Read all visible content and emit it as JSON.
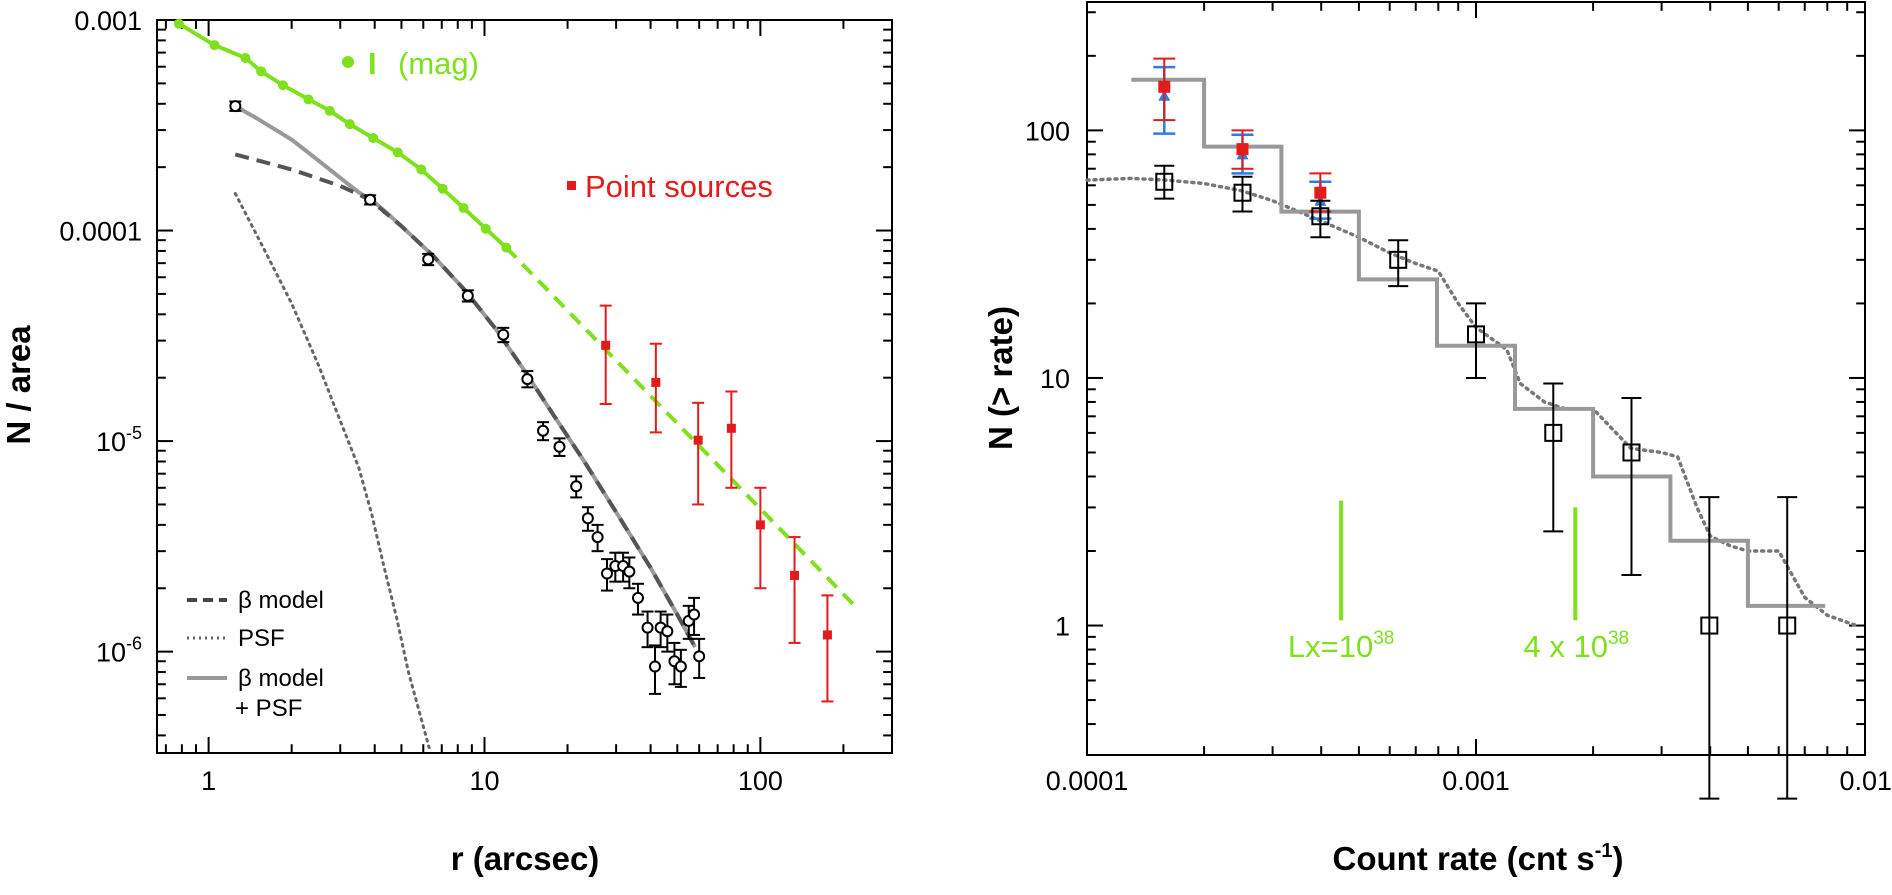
{
  "chart_data": [
    {
      "type": "scatter",
      "xscale": "log",
      "yscale": "log",
      "xlim": [
        0.65,
        300
      ],
      "ylim": [
        3.3e-07,
        0.001
      ],
      "xlabel": "r (arcsec)",
      "ylabel": "N / area",
      "xticks": [
        {
          "v": 1,
          "label": "1"
        },
        {
          "v": 10,
          "label": "10"
        },
        {
          "v": 100,
          "label": "100"
        }
      ],
      "yticks": [
        {
          "v": 0.001,
          "label": "0.001"
        },
        {
          "v": 0.0001,
          "label": "0.0001"
        },
        {
          "v": 1e-05,
          "base": "10",
          "exp": "-5"
        },
        {
          "v": 1e-06,
          "base": "10",
          "exp": "-6"
        }
      ],
      "colors": {
        "green": "#7fe01e",
        "red": "#e31b1b",
        "gray": "#999999",
        "darkgray": "#555555",
        "black": "#000000"
      },
      "series": [
        {
          "name": "I (mag)",
          "label_prefix": "I",
          "label_suffix": "(mag)",
          "kind": "line-markers",
          "x": [
            0.78,
            1.05,
            1.36,
            1.55,
            1.86,
            2.3,
            2.75,
            3.25,
            3.95,
            4.85,
            5.9,
            7.05,
            8.4,
            10.1,
            12.0
          ],
          "y": [
            0.00096,
            0.00076,
            0.00066,
            0.00057,
            0.00049,
            0.00042,
            0.00037,
            0.00032,
            0.000275,
            0.000235,
            0.000195,
            0.000158,
            0.000128,
            0.000102,
            8.3e-05
          ],
          "extrapolation": {
            "x": [
              12.0,
              225
            ],
            "y": [
              8.3e-05,
              1.6e-06
            ]
          }
        },
        {
          "name": "Point sources",
          "kind": "squares-errorbars",
          "x": [
            27.5,
            41.8,
            59.5,
            78.5,
            100,
            133,
            175
          ],
          "y": [
            2.85e-05,
            1.9e-05,
            1.01e-05,
            1.15e-05,
            4e-06,
            2.3e-06,
            1.2e-06
          ],
          "ylo": [
            1.5e-05,
            1.1e-05,
            5e-06,
            6e-06,
            2e-06,
            1.1e-06,
            5.8e-07
          ],
          "yhi": [
            4.4e-05,
            2.9e-05,
            1.52e-05,
            1.72e-05,
            6e-06,
            3.5e-06,
            1.85e-06
          ]
        },
        {
          "kind": "circles-errorbars",
          "x": [
            1.25,
            3.85,
            6.25,
            8.7,
            11.7,
            14.3,
            16.3,
            18.7,
            21.5,
            23.7,
            25.7,
            27.8,
            29.8,
            31.8,
            33.5,
            36.0,
            39.0,
            41.5,
            43.5,
            46.0,
            48.8,
            51.5,
            55.0,
            57.5,
            60.0
          ],
          "y": [
            0.00039,
            0.00014,
            7.3e-05,
            4.9e-05,
            3.2e-05,
            1.97e-05,
            1.12e-05,
            9.4e-06,
            6.1e-06,
            4.3e-06,
            3.5e-06,
            2.35e-06,
            2.55e-06,
            2.55e-06,
            2.4e-06,
            1.8e-06,
            1.3e-06,
            8.5e-07,
            1.3e-06,
            1.25e-06,
            9e-07,
            8.5e-07,
            1.4e-06,
            1.5e-06,
            9.5e-07
          ],
          "ylo": [
            0.00037,
            0.000133,
            6.85e-05,
            4.6e-05,
            2.95e-05,
            1.8e-05,
            1.01e-05,
            8.5e-06,
            5.4e-06,
            3.75e-06,
            3e-06,
            1.95e-06,
            2.15e-06,
            2.15e-06,
            2e-06,
            1.5e-06,
            1.05e-06,
            6.3e-07,
            1.05e-06,
            1e-06,
            7e-07,
            6.8e-07,
            1.15e-06,
            1.2e-06,
            7.5e-07
          ],
          "yhi": [
            0.00041,
            0.000147,
            7.75e-05,
            5.2e-05,
            3.45e-05,
            2.15e-05,
            1.23e-05,
            1.03e-05,
            6.8e-06,
            4.85e-06,
            4e-06,
            2.75e-06,
            2.95e-06,
            2.95e-06,
            2.8e-06,
            2.1e-06,
            1.55e-06,
            1.07e-06,
            1.55e-06,
            1.5e-06,
            1.1e-06,
            1.02e-06,
            1.65e-06,
            1.8e-06,
            1.15e-06
          ]
        },
        {
          "name": "β model",
          "kind": "dashed",
          "x": [
            1.25,
            2.0,
            3.0,
            3.85,
            5.0,
            6.5,
            8.5,
            11,
            14,
            18,
            23,
            30,
            40,
            50,
            58
          ],
          "y": [
            0.00023,
            0.000195,
            0.000163,
            0.00014,
            0.000105,
            7.6e-05,
            5.2e-05,
            3.4e-05,
            2.15e-05,
            1.3e-05,
            8e-06,
            4.6e-06,
            2.5e-06,
            1.5e-06,
            1.05e-06
          ]
        },
        {
          "name": "PSF",
          "kind": "dotted",
          "x": [
            1.25,
            1.6,
            2.0,
            2.5,
            3.0,
            3.5,
            3.9,
            4.3,
            4.8,
            5.3,
            5.8,
            6.3
          ],
          "y": [
            0.00015,
            8e-05,
            4.5e-05,
            2.3e-05,
            1.25e-05,
            7.5e-06,
            4.5e-06,
            2.6e-06,
            1.45e-06,
            8e-07,
            5.2e-07,
            3.5e-07
          ]
        },
        {
          "name": "β model + PSF",
          "label_line1": "β model",
          "label_line2": "+ PSF",
          "kind": "solid",
          "x": [
            1.25,
            1.5,
            2.0,
            2.5,
            3.0,
            3.5,
            3.9,
            4.5,
            5.0,
            6.5,
            8.5,
            11,
            14,
            18,
            23,
            30,
            40,
            50,
            58
          ],
          "y": [
            0.00039,
            0.00034,
            0.00027,
            0.000215,
            0.000178,
            0.000152,
            0.00014,
            0.000119,
            0.000105,
            7.6e-05,
            5.2e-05,
            3.4e-05,
            2.15e-05,
            1.3e-05,
            8e-06,
            4.6e-06,
            2.5e-06,
            1.5e-06,
            1.05e-06
          ]
        }
      ]
    },
    {
      "type": "scatter",
      "xscale": "log",
      "yscale": "log",
      "xlim": [
        0.0001,
        0.01
      ],
      "ylim": [
        0.3,
        330
      ],
      "xlabel_base": "Count rate (cnt  s",
      "xlabel_exp": "-1",
      "xlabel_close": ")",
      "ylabel": "N (> rate)",
      "xticks": [
        {
          "v": 0.0001,
          "label": "0.0001"
        },
        {
          "v": 0.001,
          "label": "0.001"
        },
        {
          "v": 0.01,
          "label": "0.01"
        }
      ],
      "yticks": [
        {
          "v": 1,
          "label": "1"
        },
        {
          "v": 10,
          "label": "10"
        },
        {
          "v": 100,
          "label": "100"
        }
      ],
      "colors": {
        "green": "#7fe01e",
        "red": "#e31b1b",
        "blue": "#2a7de1",
        "gray": "#999999",
        "darkgray": "#777777",
        "black": "#000000"
      },
      "series": [
        {
          "kind": "step",
          "x": [
            0.00013,
            0.0002,
            0.0002,
            0.000316,
            0.000316,
            0.0005,
            0.0005,
            0.000794,
            0.000794,
            0.00126,
            0.00126,
            0.002,
            0.002,
            0.00316,
            0.00316,
            0.005,
            0.005,
            0.0079
          ],
          "y": [
            160,
            160,
            86,
            86,
            47,
            47,
            25,
            25,
            13.5,
            13.5,
            7.5,
            7.5,
            4.0,
            4.0,
            2.2,
            2.2,
            1.2,
            1.2
          ]
        },
        {
          "kind": "dotted",
          "x": [
            0.0001,
            0.00013,
            0.00016,
            0.0002,
            0.00025,
            0.0003,
            0.00035,
            0.0004,
            0.0005,
            0.0006,
            0.0007,
            0.0008,
            0.0009,
            0.001,
            0.0012,
            0.0013,
            0.0015,
            0.0017,
            0.002,
            0.0025,
            0.003,
            0.0033,
            0.0037,
            0.004,
            0.0045,
            0.005,
            0.006,
            0.007,
            0.008,
            0.0095
          ],
          "y": [
            63,
            64,
            63,
            61,
            57,
            52,
            47,
            43,
            37,
            32,
            29,
            27,
            20,
            16,
            13,
            9.5,
            8,
            7.5,
            7.5,
            5.2,
            5.0,
            4.8,
            3.0,
            2.3,
            2.1,
            2.0,
            2.0,
            1.3,
            1.1,
            1.0
          ]
        },
        {
          "kind": "open-squares-errorbars",
          "x": [
            0.000158,
            0.000251,
            0.000398,
            0.000631,
            0.001,
            0.00158,
            0.00251,
            0.00398,
            0.00631
          ],
          "y": [
            62,
            56,
            45,
            30,
            15,
            6,
            5,
            1,
            1
          ],
          "ylo": [
            53,
            47,
            37,
            23.5,
            10,
            2.4,
            1.6,
            0.2,
            0.2
          ],
          "yhi": [
            72,
            65,
            52,
            36,
            20,
            9.5,
            8.3,
            3.3,
            3.3
          ]
        },
        {
          "kind": "blue-triangles",
          "x": [
            0.000158,
            0.000251,
            0.000398
          ],
          "y": [
            138,
            80,
            52
          ],
          "ylo": [
            97,
            67,
            44
          ],
          "yhi": [
            180,
            96,
            62
          ]
        },
        {
          "kind": "red-squares",
          "x": [
            0.000158,
            0.000251,
            0.000398
          ],
          "y": [
            150,
            84,
            56
          ],
          "ylo": [
            110,
            70,
            47
          ],
          "yhi": [
            195,
            100,
            67
          ]
        }
      ],
      "annotations": [
        {
          "x": 0.00045,
          "ylo": 1.05,
          "yhi": 3.2,
          "base": "Lx=10",
          "exp": "38"
        },
        {
          "x": 0.0018,
          "ylo": 1.05,
          "yhi": 3.0,
          "base": "4 x 10",
          "exp": "38"
        }
      ]
    }
  ]
}
